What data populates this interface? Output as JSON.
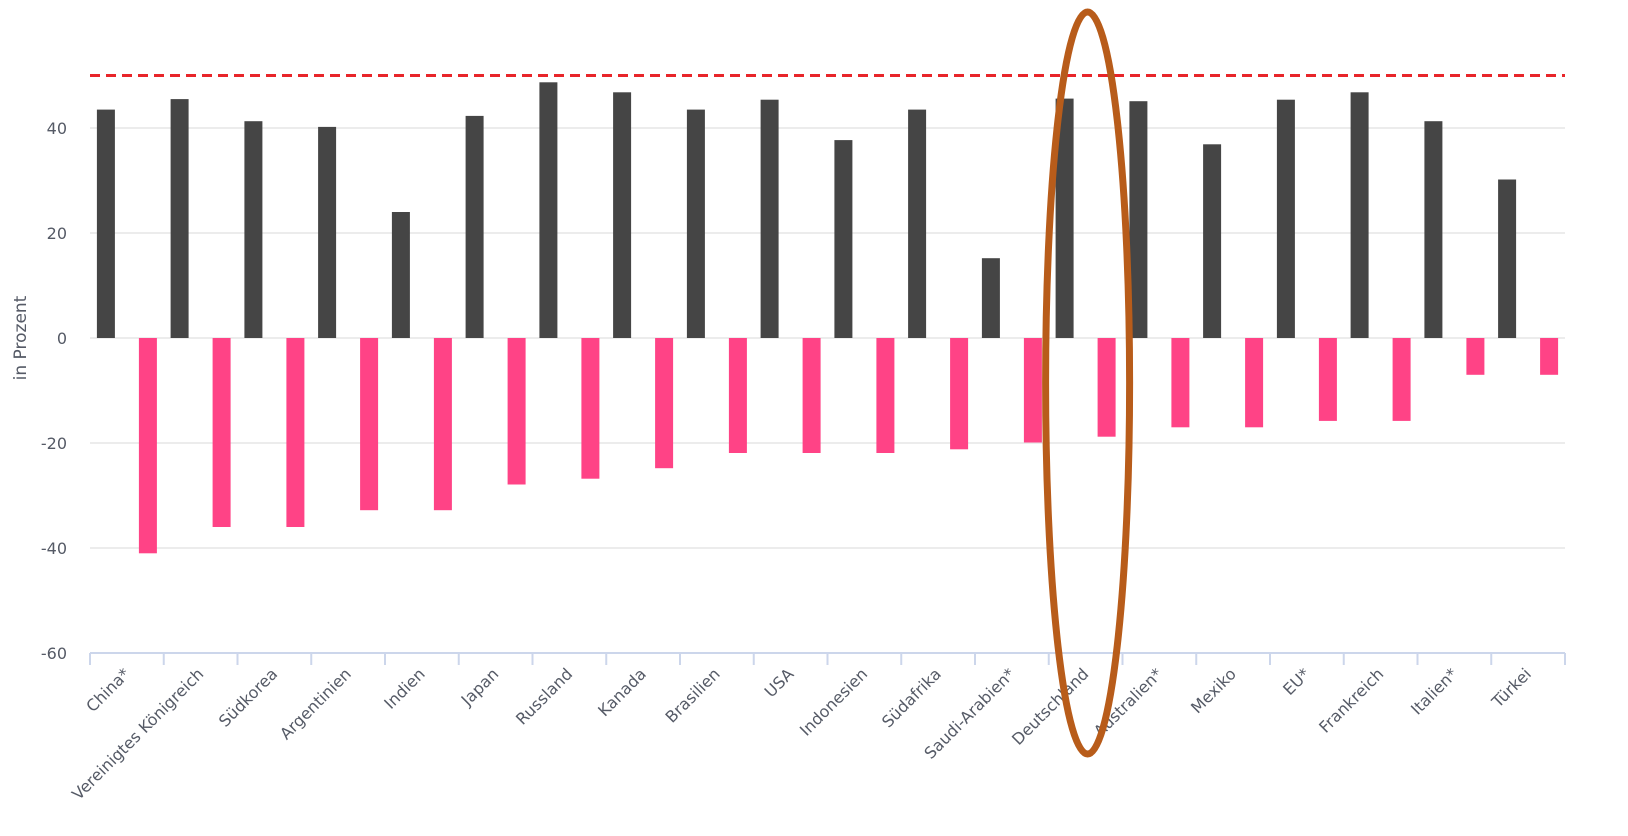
{
  "chart_data": {
    "type": "bar",
    "ylabel": "in Prozent",
    "ylim": [
      -60,
      50
    ],
    "yticks": [
      -60,
      -40,
      -20,
      0,
      20,
      40
    ],
    "grid": true,
    "reference_line": {
      "value": 50,
      "style": "dashed",
      "color": "#e8252a"
    },
    "highlight": {
      "category": "Deutschland",
      "shape": "ellipse",
      "color": "#b85c1a"
    },
    "categories": [
      "China*",
      "Vereinigtes Königreich",
      "Südkorea",
      "Argentinien",
      "Indien",
      "Japan",
      "Russland",
      "Kanada",
      "Brasilien",
      "USA",
      "Indonesien",
      "Südafrika",
      "Saudi-Arabien*",
      "Deutschland",
      "Australien*",
      "Mexiko",
      "EU*",
      "Frankreich",
      "Italien*",
      "Türkei"
    ],
    "series": [
      {
        "color": "#454545",
        "values": [
          43.5,
          45.5,
          41.3,
          40.2,
          24.0,
          42.3,
          48.7,
          46.8,
          43.5,
          45.4,
          37.7,
          43.5,
          15.2,
          45.6,
          45.1,
          36.9,
          45.4,
          46.8,
          41.3,
          30.2
        ]
      },
      {
        "color": "#ff4386",
        "values": [
          -41.0,
          -36.0,
          -36.0,
          -32.8,
          -32.8,
          -27.9,
          -26.8,
          -24.8,
          -21.9,
          -21.9,
          -21.9,
          -21.2,
          -19.9,
          -18.8,
          -17.0,
          -17.0,
          -15.8,
          -15.8,
          -7.0,
          -7.0
        ]
      }
    ]
  }
}
